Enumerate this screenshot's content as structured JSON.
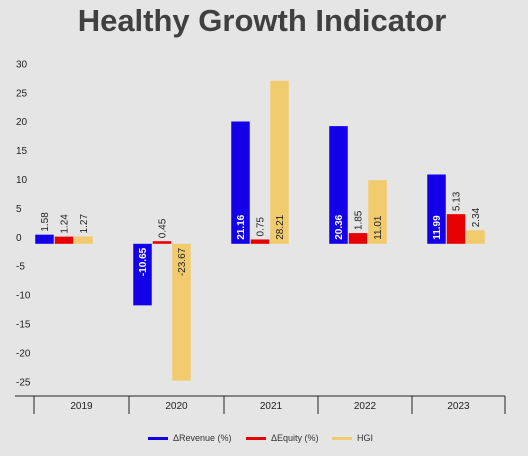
{
  "chart_data": {
    "type": "bar",
    "title": "Healthy Growth Indicator",
    "categories": [
      "2019",
      "2020",
      "2021",
      "2022",
      "2023"
    ],
    "series": [
      {
        "name": "ΔRevenue (%)",
        "color": "#1400e8",
        "values": [
          1.58,
          -10.65,
          21.16,
          20.36,
          11.99
        ]
      },
      {
        "name": "ΔEquity (%)",
        "color": "#e60000",
        "values": [
          1.24,
          0.45,
          0.75,
          1.85,
          5.13
        ]
      },
      {
        "name": "HGI",
        "color": "#f2cb6e",
        "values": [
          1.27,
          -23.67,
          28.21,
          11.01,
          2.34
        ]
      }
    ],
    "y_ticks": [
      "30",
      "25",
      "20",
      "15",
      "10",
      "5",
      "0",
      "-5",
      "-10",
      "-15",
      "-20",
      "-25"
    ],
    "data_labels": [
      [
        "1.58",
        "1.24",
        "1.27"
      ],
      [
        "-10.65",
        "0.45",
        "-23.67"
      ],
      [
        "21.16",
        "0.75",
        "28.21"
      ],
      [
        "20.36",
        "1.85",
        "11.01"
      ],
      [
        "11.99",
        "5.13",
        "2.34"
      ]
    ],
    "ylim": [
      -26.5,
      31
    ],
    "grid": false,
    "legend": "bottom"
  }
}
